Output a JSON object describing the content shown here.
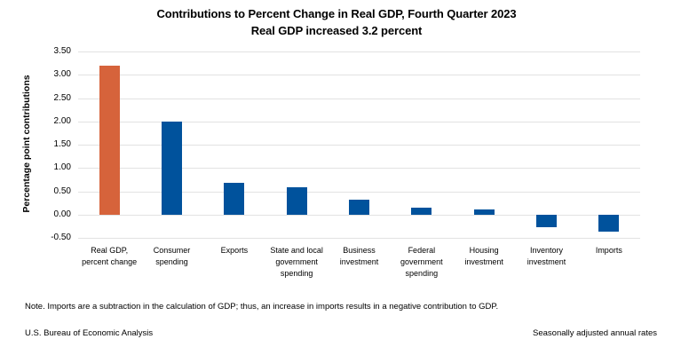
{
  "chart_data": {
    "type": "bar",
    "title": "Contributions to Percent Change in Real GDP, Fourth Quarter 2023",
    "subtitle": "Real GDP increased 3.2 percent",
    "ylabel": "Percentage point contributions",
    "xlabel": "",
    "ylim": [
      -0.5,
      3.5
    ],
    "ytick_step": 0.5,
    "ytick_labels": [
      "3.50",
      "3.00",
      "2.50",
      "2.00",
      "1.50",
      "1.00",
      "0.50",
      "0.00",
      "-0.50"
    ],
    "grid": true,
    "legend_position": "none",
    "categories": [
      "Real GDP, percent change",
      "Consumer spending",
      "Exports",
      "State and local government spending",
      "Business investment",
      "Federal government spending",
      "Housing investment",
      "Inventory investment",
      "Imports"
    ],
    "values": [
      3.2,
      2.0,
      0.68,
      0.58,
      0.32,
      0.15,
      0.11,
      -0.27,
      -0.36
    ],
    "bar_colors": [
      "#D6633B",
      "#00529C",
      "#00529C",
      "#00529C",
      "#00529C",
      "#00529C",
      "#00529C",
      "#00529C",
      "#00529C"
    ]
  },
  "note": "Note. Imports are a subtraction in the calculation of GDP; thus, an increase in imports results in a negative contribution to GDP.",
  "footer": {
    "left": "U.S. Bureau of Economic Analysis",
    "right": "Seasonally adjusted annual rates"
  },
  "colors": {
    "highlight_bar": "#D6633B",
    "default_bar": "#00529C",
    "gridline": "#E2E2E2"
  }
}
